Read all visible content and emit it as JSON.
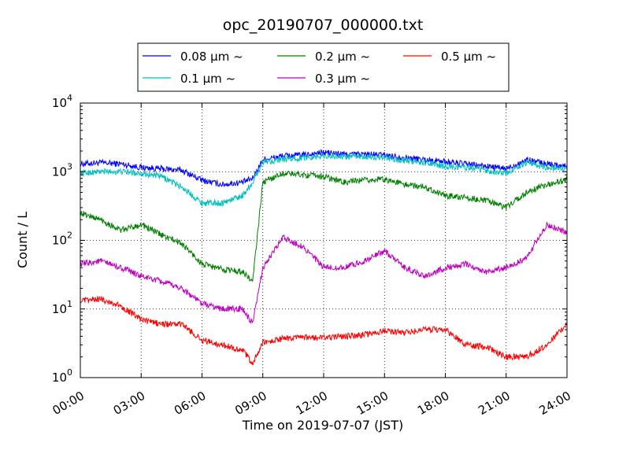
{
  "chart_data": {
    "type": "line",
    "title": "opc_20190707_000000.txt",
    "xlabel": "Time on 2019-07-07 (JST)",
    "ylabel": "Count / L",
    "yscale": "log",
    "ylim": [
      1,
      10000
    ],
    "xlim": [
      "00:00",
      "24:00"
    ],
    "grid": true,
    "legend_position": "top",
    "xticks": [
      "00:00",
      "03:00",
      "06:00",
      "09:00",
      "12:00",
      "15:00",
      "18:00",
      "21:00",
      "24:00"
    ],
    "yticks": [
      {
        "base": "10",
        "exp": "0"
      },
      {
        "base": "10",
        "exp": "1"
      },
      {
        "base": "10",
        "exp": "2"
      },
      {
        "base": "10",
        "exp": "3"
      },
      {
        "base": "10",
        "exp": "4"
      }
    ],
    "x": [
      "00:00",
      "01:00",
      "02:00",
      "03:00",
      "04:00",
      "05:00",
      "06:00",
      "07:00",
      "08:00",
      "08:30",
      "09:00",
      "10:00",
      "11:00",
      "12:00",
      "13:00",
      "14:00",
      "15:00",
      "16:00",
      "17:00",
      "18:00",
      "19:00",
      "20:00",
      "21:00",
      "22:00",
      "23:00",
      "24:00"
    ],
    "series": [
      {
        "name": "0.08 μm ~",
        "color": "#0000ff",
        "values": [
          1300,
          1350,
          1300,
          1150,
          1100,
          1050,
          750,
          650,
          700,
          800,
          1500,
          1700,
          1750,
          1900,
          1800,
          1800,
          1750,
          1600,
          1500,
          1400,
          1300,
          1200,
          1100,
          1500,
          1300,
          1200
        ]
      },
      {
        "name": "0.1 μm ~",
        "color": "#00bfbf",
        "values": [
          950,
          1000,
          1000,
          950,
          850,
          600,
          350,
          350,
          450,
          700,
          1400,
          1500,
          1600,
          1700,
          1650,
          1650,
          1600,
          1450,
          1350,
          1200,
          1150,
          1050,
          950,
          1350,
          1150,
          1100
        ]
      },
      {
        "name": "0.2 μm ~",
        "color": "#008000",
        "values": [
          250,
          200,
          140,
          170,
          120,
          90,
          45,
          38,
          35,
          25,
          700,
          950,
          900,
          850,
          700,
          750,
          780,
          650,
          600,
          450,
          420,
          380,
          300,
          500,
          650,
          750
        ]
      },
      {
        "name": "0.3 μm ~",
        "color": "#bf00bf",
        "values": [
          45,
          50,
          40,
          30,
          25,
          20,
          12,
          10,
          10,
          6,
          40,
          110,
          80,
          40,
          40,
          50,
          70,
          40,
          30,
          40,
          45,
          35,
          40,
          55,
          170,
          130
        ]
      },
      {
        "name": "0.5 μm ~",
        "color": "#ff0000",
        "values": [
          13,
          14,
          11,
          7,
          6,
          6,
          3.5,
          3.0,
          2.5,
          1.6,
          3.2,
          3.7,
          3.8,
          3.8,
          4.0,
          4.2,
          4.8,
          4.5,
          5.0,
          5.0,
          3.0,
          2.8,
          2.0,
          2.0,
          3.0,
          6.0
        ]
      }
    ]
  }
}
